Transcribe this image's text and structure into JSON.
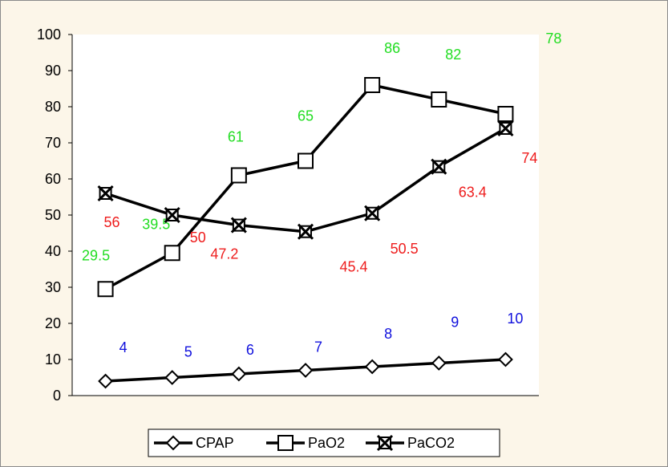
{
  "chart_data": {
    "type": "line",
    "title": "",
    "xlabel": "",
    "ylabel": "",
    "x": [
      1,
      2,
      3,
      4,
      5,
      6,
      7
    ],
    "ylim": [
      0,
      100
    ],
    "y_ticks": [
      "0",
      "10",
      "20",
      "30",
      "40",
      "50",
      "60",
      "70",
      "80",
      "90",
      "100"
    ],
    "grid": false,
    "legend_position": "bottom",
    "series": [
      {
        "name": "CPAP",
        "values": [
          4,
          5,
          6,
          7,
          8,
          9,
          10
        ],
        "labels": [
          "4",
          "5",
          "6",
          "7",
          "8",
          "9",
          "10"
        ],
        "marker": "diamond",
        "label_color": "#1010dd"
      },
      {
        "name": "PaO2",
        "values": [
          29.5,
          39.5,
          61,
          65,
          86,
          82,
          78
        ],
        "labels": [
          "29.5",
          "39.5",
          "61",
          "65",
          "86",
          "82",
          "78"
        ],
        "marker": "square",
        "label_color": "#22dd22"
      },
      {
        "name": "PaCO2",
        "values": [
          56,
          50,
          47.2,
          45.4,
          50.5,
          63.4,
          74
        ],
        "labels": [
          "56",
          "50",
          "47.2",
          "45.4",
          "50.5",
          "63.4",
          "74"
        ],
        "marker": "x-square",
        "label_color": "#ee1c1c"
      }
    ],
    "line_color": "#000000",
    "plot_background": "#ffffff",
    "chart_background": "#fcf6e9"
  }
}
